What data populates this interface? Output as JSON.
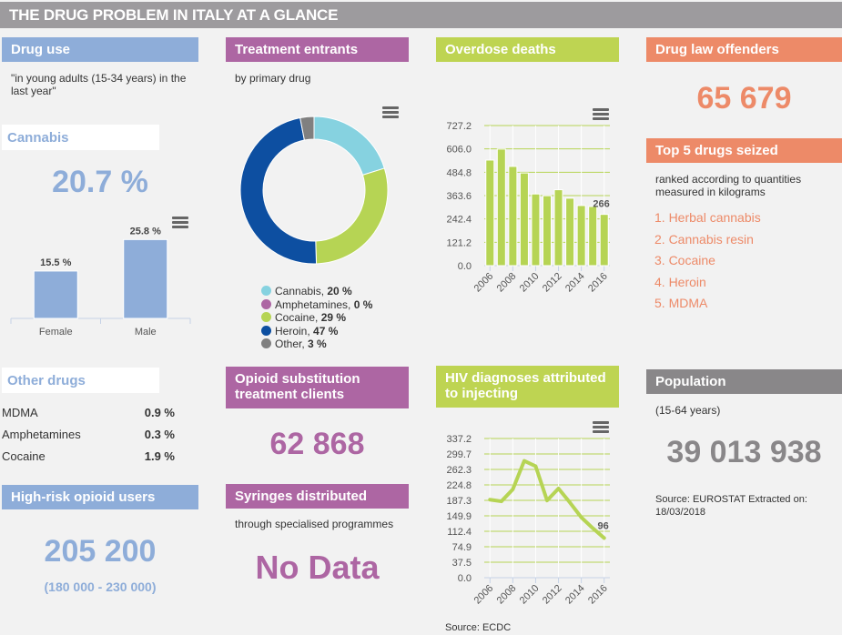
{
  "title": "THE DRUG PROBLEM IN ITALY AT A GLANCE",
  "colors": {
    "blue": "#8eadd9",
    "purple": "#ad66a3",
    "green": "#bed452",
    "orange": "#ed8a68",
    "grey": "#898789"
  },
  "drug_use": {
    "header": "Drug use",
    "description": "\"in young adults (15-34 years) in the last year\"",
    "cannabis": {
      "label": "Cannabis",
      "value": "20.7 %",
      "menu_icon": "hamburger-menu-icon"
    },
    "other_drugs": {
      "label": "Other drugs",
      "rows": [
        {
          "name": "MDMA",
          "value": "0.9 %"
        },
        {
          "name": "Amphetamines",
          "value": "0.3 %"
        },
        {
          "name": "Cocaine",
          "value": "1.9 %"
        }
      ]
    }
  },
  "high_risk": {
    "header": "High-risk opioid users",
    "value": "205 200",
    "range": "(180 000 - 230 000)"
  },
  "treatment": {
    "header": "Treatment entrants",
    "description": "by primary drug",
    "menu_icon": "hamburger-menu-icon"
  },
  "opioid_substitution": {
    "header": "Opioid substitution treatment clients",
    "value": "62 868"
  },
  "syringes": {
    "header": "Syringes distributed",
    "description": "through specialised programmes",
    "value": "No Data"
  },
  "overdose": {
    "header": "Overdose deaths",
    "menu_icon": "hamburger-menu-icon"
  },
  "hiv": {
    "header": "HIV diagnoses attributed to injecting",
    "source": "Source: ECDC",
    "menu_icon": "hamburger-menu-icon"
  },
  "offenders": {
    "header": "Drug law offenders",
    "value": "65 679"
  },
  "seized": {
    "header": "Top 5 drugs seized",
    "description": "ranked according to quantities measured in kilograms",
    "items": [
      "1. Herbal cannabis",
      "2. Cannabis resin",
      "3. Cocaine",
      "4. Heroin",
      "5. MDMA"
    ]
  },
  "population": {
    "header": "Population",
    "description": "(15-64 years)",
    "value": "39 013 938",
    "source": "Source: EUROSTAT Extracted on: 18/03/2018"
  },
  "chart_data": [
    {
      "id": "cannabis_gender",
      "type": "bar",
      "title": "",
      "categories": [
        "Female",
        "Male"
      ],
      "values": [
        15.5,
        25.8
      ],
      "value_labels": [
        "15.5 %",
        "25.8 %"
      ],
      "ylim": [
        0,
        30
      ],
      "grid": false,
      "color": "#8eadd9"
    },
    {
      "id": "treatment_entrants",
      "type": "pie",
      "donut": true,
      "title": "Treatment entrants by primary drug",
      "slices": [
        {
          "name": "Cannabis",
          "value": 20,
          "label": "20 %",
          "color": "#86d2e0"
        },
        {
          "name": "Amphetamines",
          "value": 0,
          "label": "0 %",
          "color": "#ad66a3"
        },
        {
          "name": "Cocaine",
          "value": 29,
          "label": "29 %",
          "color": "#b6d454"
        },
        {
          "name": "Heroin",
          "value": 47,
          "label": "47 %",
          "color": "#0d4fa1"
        },
        {
          "name": "Other",
          "value": 3,
          "label": "3 %",
          "color": "#808080"
        }
      ],
      "legend": "bottom"
    },
    {
      "id": "overdose_deaths",
      "type": "bar",
      "title": "Overdose deaths",
      "x": [
        2006,
        2007,
        2008,
        2009,
        2010,
        2011,
        2012,
        2013,
        2014,
        2015,
        2016
      ],
      "values": [
        548,
        605,
        515,
        481,
        372,
        363,
        394,
        350,
        312,
        307,
        266
      ],
      "last_label": "266",
      "yticks": [
        "0.0",
        "121.2",
        "242.4",
        "363.6",
        "484.8",
        "606.0",
        "727.2"
      ],
      "xticks": [
        "2006",
        "2008",
        "2010",
        "2012",
        "2014",
        "2016"
      ],
      "ylim": [
        0,
        727.2
      ],
      "grid": true,
      "color": "#b6d454"
    },
    {
      "id": "hiv_injecting",
      "type": "line",
      "title": "HIV diagnoses attributed to injecting",
      "x": [
        2006,
        2007,
        2008,
        2009,
        2010,
        2011,
        2012,
        2013,
        2014,
        2015,
        2016
      ],
      "values": [
        189,
        185,
        214,
        283,
        270,
        187,
        216,
        182,
        146,
        120,
        96
      ],
      "last_label": "96",
      "yticks": [
        "0.0",
        "37.5",
        "74.9",
        "112.4",
        "149.9",
        "187.3",
        "224.8",
        "262.3",
        "299.7",
        "337.2"
      ],
      "xticks": [
        "2006",
        "2008",
        "2010",
        "2012",
        "2014",
        "2016"
      ],
      "ylim": [
        0,
        337.2
      ],
      "grid": true,
      "color": "#b6d454"
    }
  ]
}
